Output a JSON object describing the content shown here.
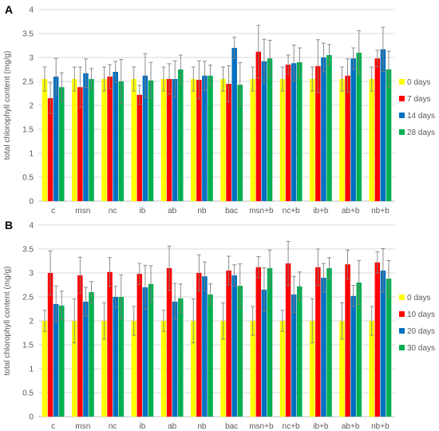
{
  "chart_data": [
    {
      "panel": "A",
      "type": "bar",
      "ylabel": "total chlorophyll content (mg/g)",
      "ylim": [
        0,
        4
      ],
      "yticks": [
        "0",
        "0.5",
        "1",
        "1.5",
        "2",
        "2.5",
        "3",
        "3.5",
        "4"
      ],
      "categories": [
        "c",
        "msn",
        "nc",
        "ib",
        "ab",
        "nb",
        "bac",
        "msn+b",
        "nc+b",
        "ib+b",
        "ab+b",
        "nb+b"
      ],
      "legend_position": "right",
      "error_bars": true,
      "series": [
        {
          "name": "0 days",
          "color": "#ffff00",
          "values": [
            2.55,
            2.55,
            2.55,
            2.55,
            2.55,
            2.55,
            2.55,
            2.55,
            2.55,
            2.55,
            2.55,
            2.55
          ],
          "errors": [
            0.25,
            0.25,
            0.25,
            0.25,
            0.25,
            0.25,
            0.25,
            0.25,
            0.25,
            0.25,
            0.25,
            0.25
          ]
        },
        {
          "name": "7 days",
          "color": "#ff0000",
          "values": [
            2.15,
            2.38,
            2.6,
            2.22,
            2.55,
            2.53,
            2.45,
            3.12,
            2.85,
            2.82,
            2.62,
            2.98
          ],
          "errors": [
            0.32,
            0.42,
            0.25,
            0.2,
            0.32,
            0.4,
            0.38,
            0.55,
            0.2,
            0.55,
            0.35,
            0.17
          ]
        },
        {
          "name": "14 days",
          "color": "#0070c0",
          "values": [
            2.6,
            2.67,
            2.7,
            2.62,
            2.55,
            2.62,
            3.2,
            2.92,
            2.88,
            3.0,
            2.98,
            3.17
          ]
        },
        {
          "name": "28 days",
          "color": "#00b050",
          "values": [
            2.38,
            2.55,
            2.5,
            2.52,
            2.75,
            2.62,
            2.43,
            2.98,
            2.9,
            3.05,
            3.1,
            2.75
          ]
        }
      ]
    },
    {
      "panel": "B",
      "type": "bar",
      "ylabel": "total chlorophyll content (mg/g)",
      "ylim": [
        0,
        4
      ],
      "yticks": [
        "0",
        "0.5",
        "1",
        "1.5",
        "2",
        "2.5",
        "3",
        "3.5",
        "4"
      ],
      "categories": [
        "c",
        "msn",
        "nc",
        "ib",
        "ab",
        "nb",
        "bac",
        "msn+b",
        "nc+b",
        "ib+b",
        "ab+b",
        "nb+b"
      ],
      "legend_position": "right",
      "error_bars": true,
      "series": [
        {
          "name": "0 days",
          "color": "#ffff00",
          "values": [
            2.0,
            2.0,
            2.0,
            2.0,
            2.0,
            2.0,
            2.0,
            2.0,
            2.0,
            2.0,
            2.0,
            2.0
          ]
        },
        {
          "name": "10 days",
          "color": "#ff0000",
          "values": [
            3.0,
            2.95,
            3.02,
            2.98,
            3.1,
            3.0,
            3.05,
            3.12,
            3.2,
            3.12,
            3.18,
            3.22
          ]
        },
        {
          "name": "20 days",
          "color": "#0070c0",
          "values": [
            2.35,
            2.4,
            2.5,
            2.7,
            2.4,
            2.93,
            2.95,
            2.65,
            2.55,
            2.9,
            2.52,
            3.05
          ]
        },
        {
          "name": "30 days",
          "color": "#00b050",
          "values": [
            2.32,
            2.6,
            2.5,
            2.77,
            2.47,
            2.55,
            2.73,
            3.1,
            2.72,
            3.1,
            2.8,
            2.88
          ]
        }
      ]
    }
  ]
}
